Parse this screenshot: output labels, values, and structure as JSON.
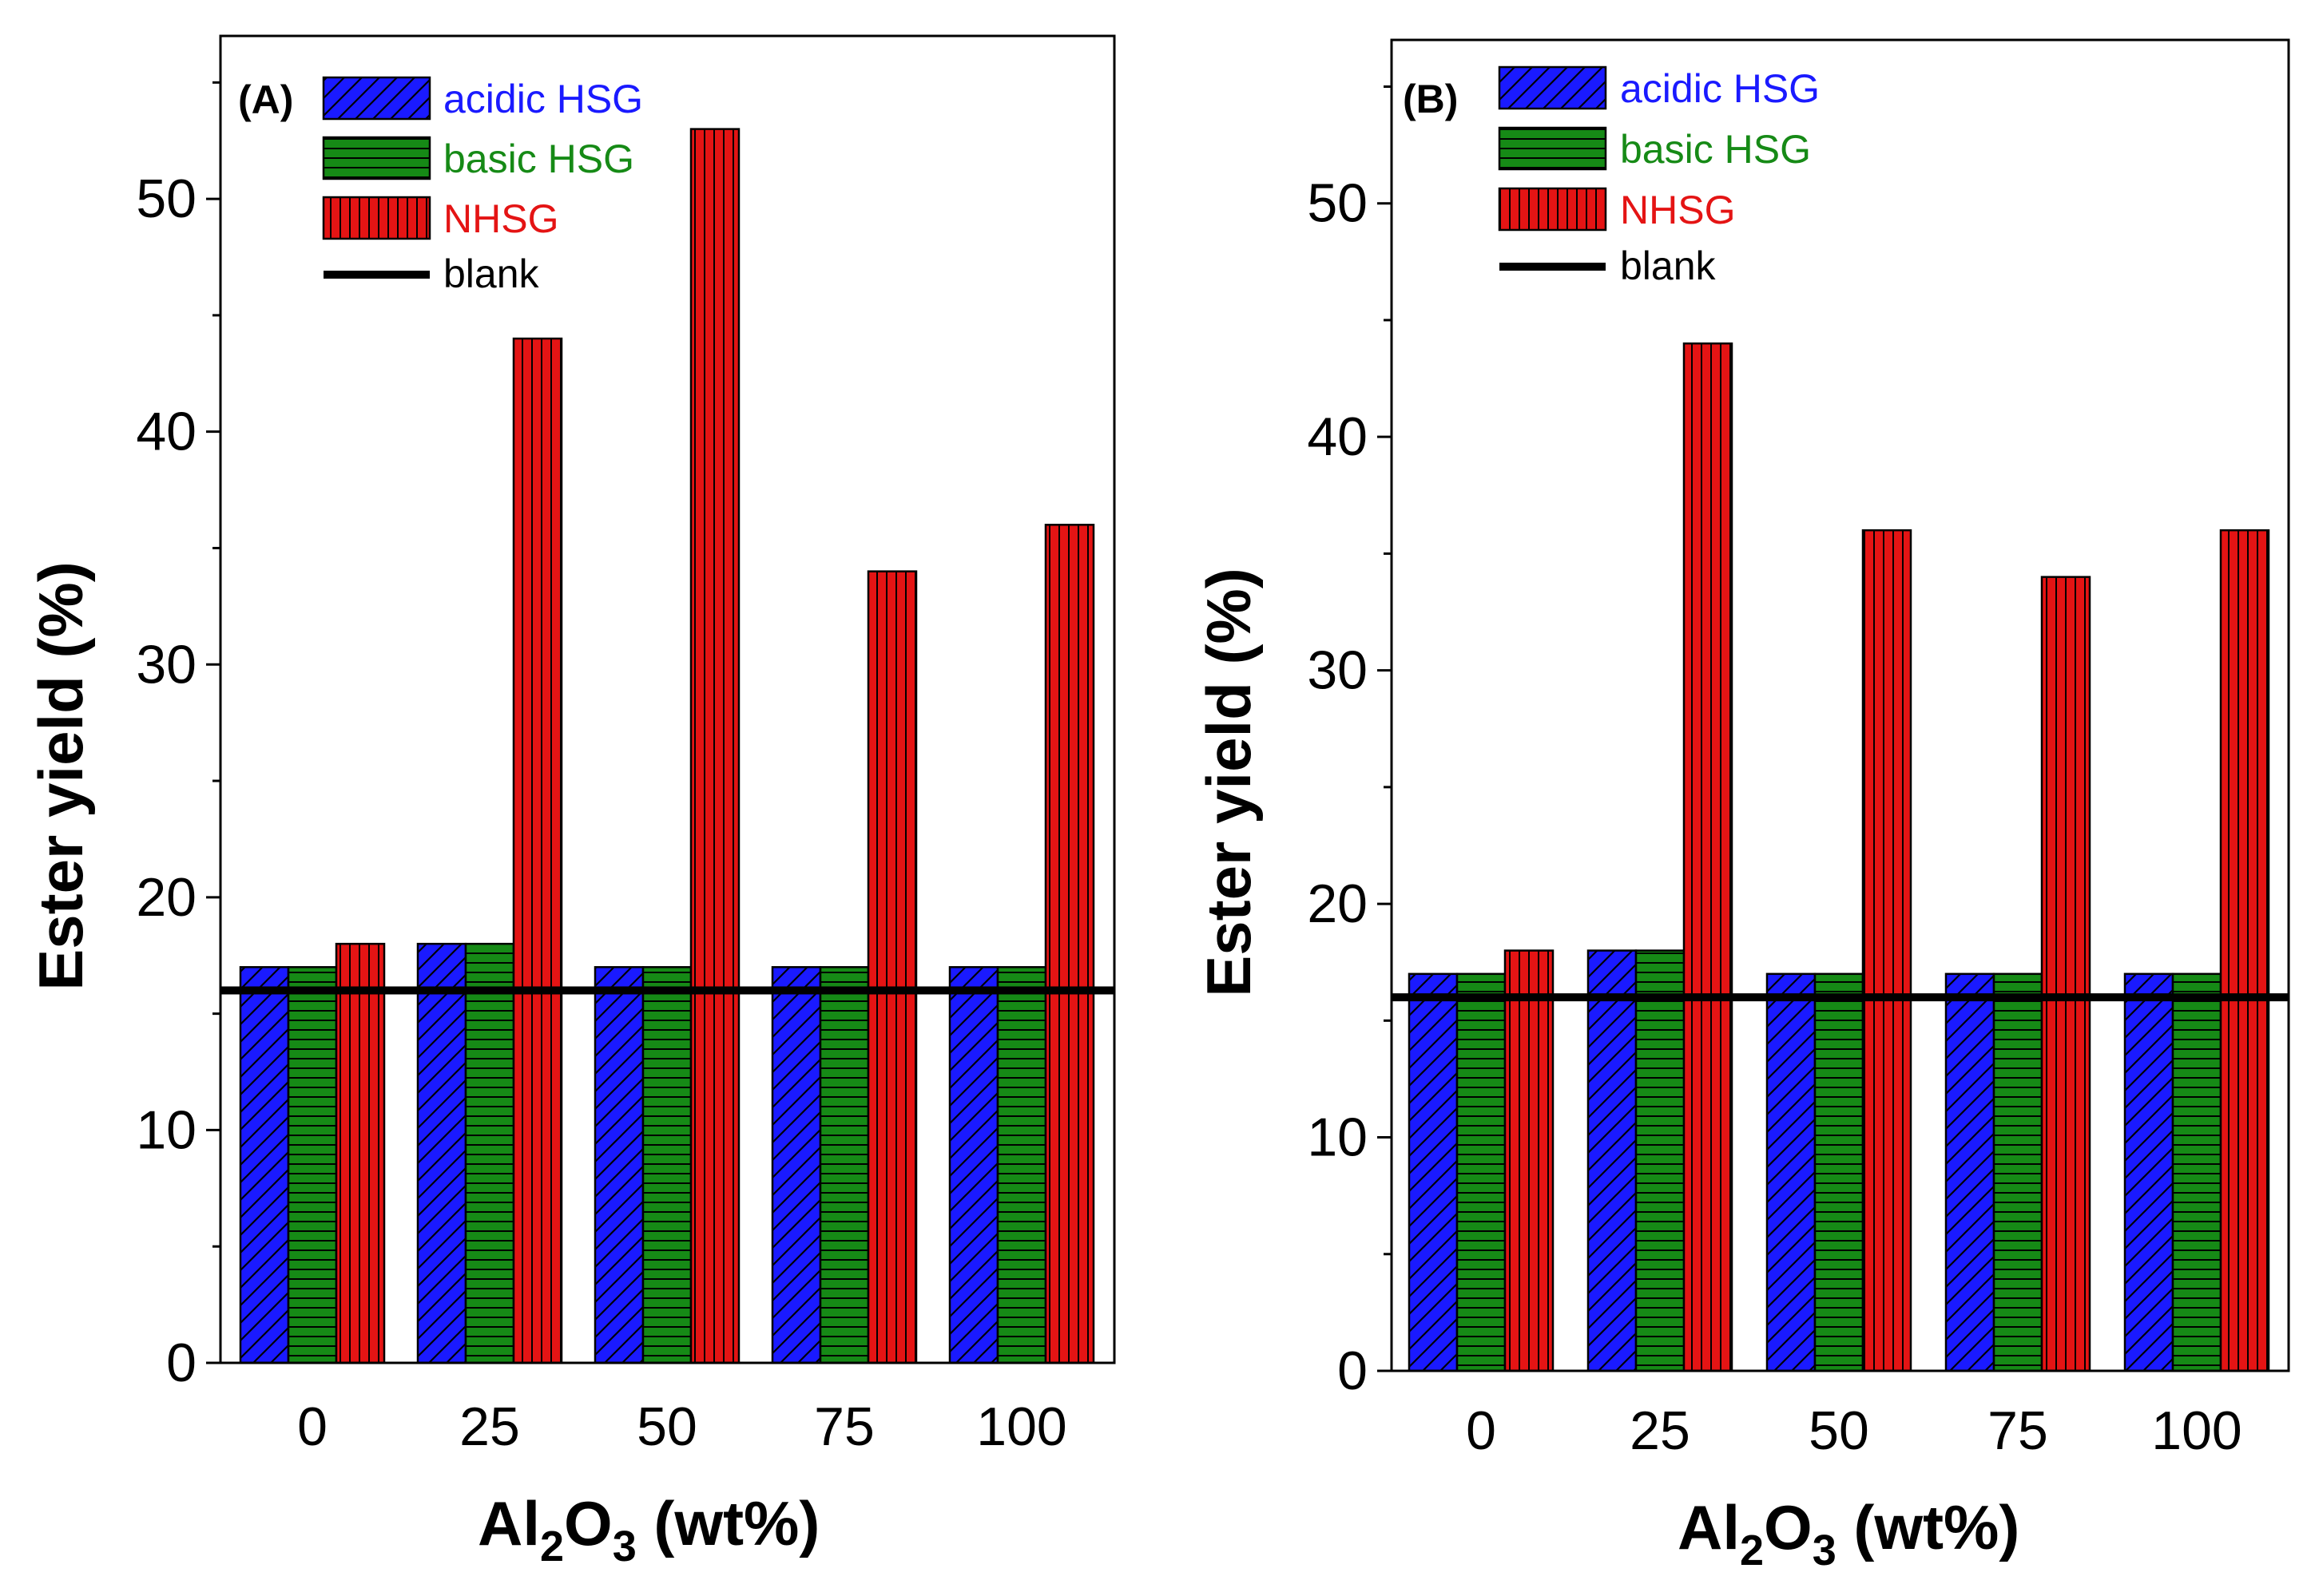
{
  "chart_data": [
    {
      "type": "bar",
      "panel_label": "(A)",
      "categories": [
        "0",
        "25",
        "50",
        "75",
        "100"
      ],
      "series": [
        {
          "name": "acidic HSG",
          "values": [
            17,
            18,
            17,
            17,
            17
          ],
          "color": "#1a1aff",
          "pattern": "diagonal"
        },
        {
          "name": "basic HSG",
          "values": [
            17,
            18,
            17,
            17,
            17
          ],
          "color": "#168a16",
          "pattern": "horizontal"
        },
        {
          "name": "NHSG",
          "values": [
            18,
            44,
            53,
            34,
            36
          ],
          "color": "#e41414",
          "pattern": "vertical"
        }
      ],
      "blank": {
        "name": "blank",
        "value": 16,
        "color": "#000000"
      },
      "xlabel_main": "Al",
      "xlabel_sub1": "2",
      "xlabel_mid": "O",
      "xlabel_sub2": "3",
      "xlabel_tail": " (wt%)",
      "ylabel": "Ester yield (%)",
      "ylim": [
        0,
        57
      ],
      "yticks": [
        "0",
        "10",
        "20",
        "30",
        "40",
        "50"
      ],
      "legend_position": "top-left"
    },
    {
      "type": "bar",
      "panel_label": "(B)",
      "categories": [
        "0",
        "25",
        "50",
        "75",
        "100"
      ],
      "series": [
        {
          "name": "acidic HSG",
          "values": [
            17,
            18,
            17,
            17,
            17
          ],
          "color": "#1a1aff",
          "pattern": "diagonal"
        },
        {
          "name": "basic HSG",
          "values": [
            17,
            18,
            17,
            17,
            17
          ],
          "color": "#168a16",
          "pattern": "horizontal"
        },
        {
          "name": "NHSG",
          "values": [
            18,
            44,
            36,
            34,
            36
          ],
          "color": "#e41414",
          "pattern": "vertical"
        }
      ],
      "blank": {
        "name": "blank",
        "value": 16,
        "color": "#000000"
      },
      "xlabel_main": "Al",
      "xlabel_sub1": "2",
      "xlabel_mid": "O",
      "xlabel_sub2": "3",
      "xlabel_tail": " (wt%)",
      "ylabel": "Ester yield (%)",
      "ylim": [
        0,
        57
      ],
      "yticks": [
        "0",
        "10",
        "20",
        "30",
        "40",
        "50"
      ],
      "legend_position": "top-left"
    }
  ]
}
